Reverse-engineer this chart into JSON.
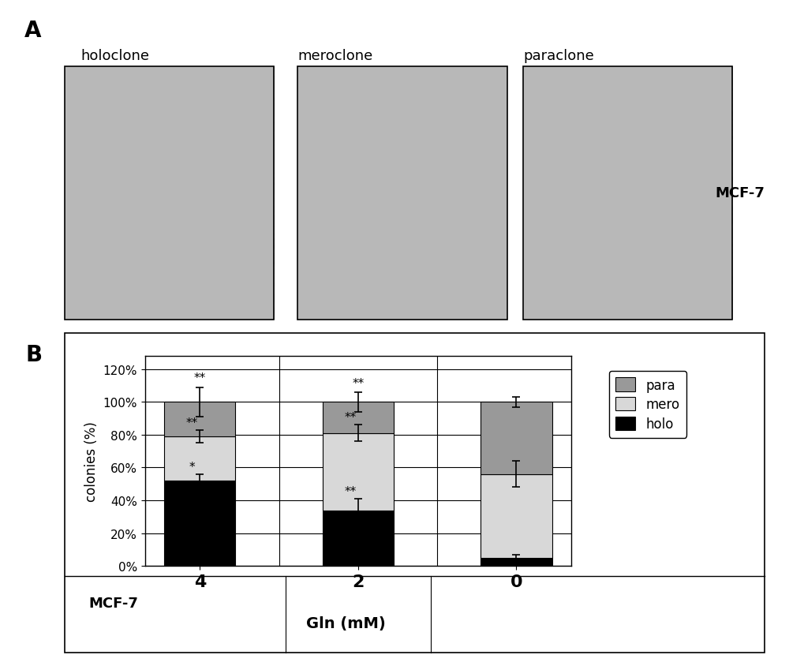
{
  "categories": [
    "4",
    "2",
    "0"
  ],
  "xlabel_main": "Gln (mM)",
  "xlabel_left": "MCF-7",
  "ylabel": "colonies (%)",
  "yticks": [
    0,
    20,
    40,
    60,
    80,
    100,
    120
  ],
  "ytick_labels": [
    "0%",
    "20%",
    "40%",
    "60%",
    "80%",
    "100%",
    "120%"
  ],
  "ylim": [
    0,
    128
  ],
  "holo_values": [
    52,
    34,
    5
  ],
  "mero_values": [
    27,
    47,
    51
  ],
  "para_values": [
    21,
    19,
    44
  ],
  "holo_errors": [
    4,
    7,
    2
  ],
  "mero_errors": [
    4,
    5,
    8
  ],
  "para_errors": [
    9,
    6,
    3
  ],
  "holo_color": "#000000",
  "mero_color": "#d8d8d8",
  "para_color": "#999999",
  "bar_width": 0.45,
  "legend_labels": [
    "para",
    "mero",
    "holo"
  ],
  "legend_colors": [
    "#999999",
    "#d8d8d8",
    "#000000"
  ],
  "panel_A_label": "A",
  "panel_B_label": "B",
  "image_label_holoclone": "holoclone",
  "image_label_meroclone": "meroclone",
  "image_label_paraclone": "paraclone",
  "mcf7_label": "MCF-7",
  "img_bg_color": "#b8b8b8",
  "background_color": "#ffffff"
}
